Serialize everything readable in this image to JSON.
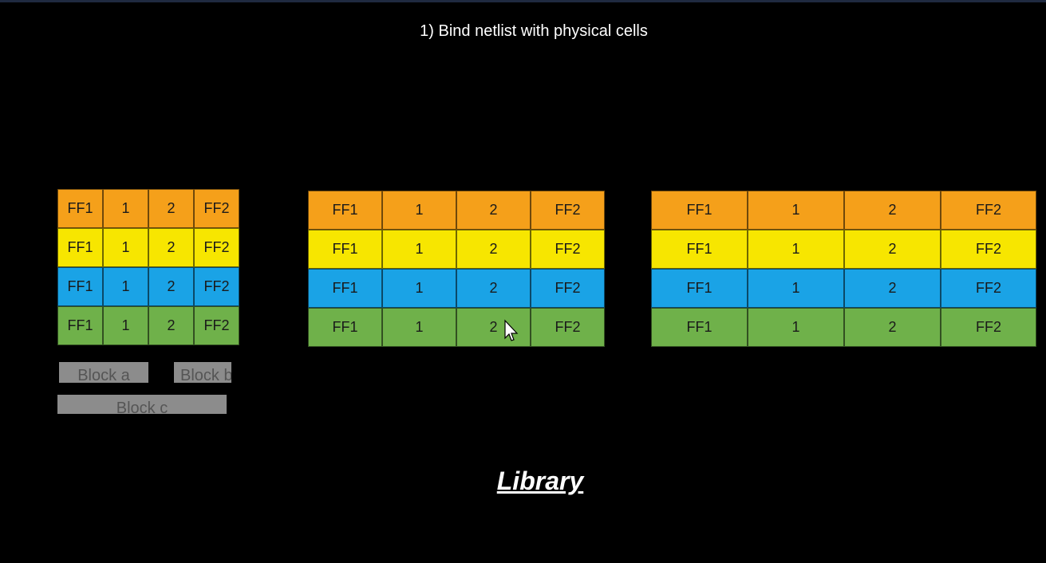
{
  "title": "1) Bind netlist with physical cells",
  "row_colors": [
    "#f5a01a",
    "#f7e600",
    "#1aa3e6",
    "#6fb14a"
  ],
  "cell_labels": [
    "FF1",
    "1",
    "2",
    "FF2"
  ],
  "grids": [
    {
      "id": "grid-small",
      "rows": [
        [
          "FF1",
          "1",
          "2",
          "FF2"
        ],
        [
          "FF1",
          "1",
          "2",
          "FF2"
        ],
        [
          "FF1",
          "1",
          "2",
          "FF2"
        ],
        [
          "FF1",
          "1",
          "2",
          "FF2"
        ]
      ]
    },
    {
      "id": "grid-medium",
      "rows": [
        [
          "FF1",
          "1",
          "2",
          "FF2"
        ],
        [
          "FF1",
          "1",
          "2",
          "FF2"
        ],
        [
          "FF1",
          "1",
          "2",
          "FF2"
        ],
        [
          "FF1",
          "1",
          "2",
          "FF2"
        ]
      ]
    },
    {
      "id": "grid-large",
      "rows": [
        [
          "FF1",
          "1",
          "2",
          "FF2"
        ],
        [
          "FF1",
          "1",
          "2",
          "FF2"
        ],
        [
          "FF1",
          "1",
          "2",
          "FF2"
        ],
        [
          "FF1",
          "1",
          "2",
          "FF2"
        ]
      ]
    }
  ],
  "blocks": {
    "a": "Block a",
    "b": "Block b",
    "c": "Block c"
  },
  "library_label": "Library",
  "cursor_icon": "mouse-pointer-icon"
}
